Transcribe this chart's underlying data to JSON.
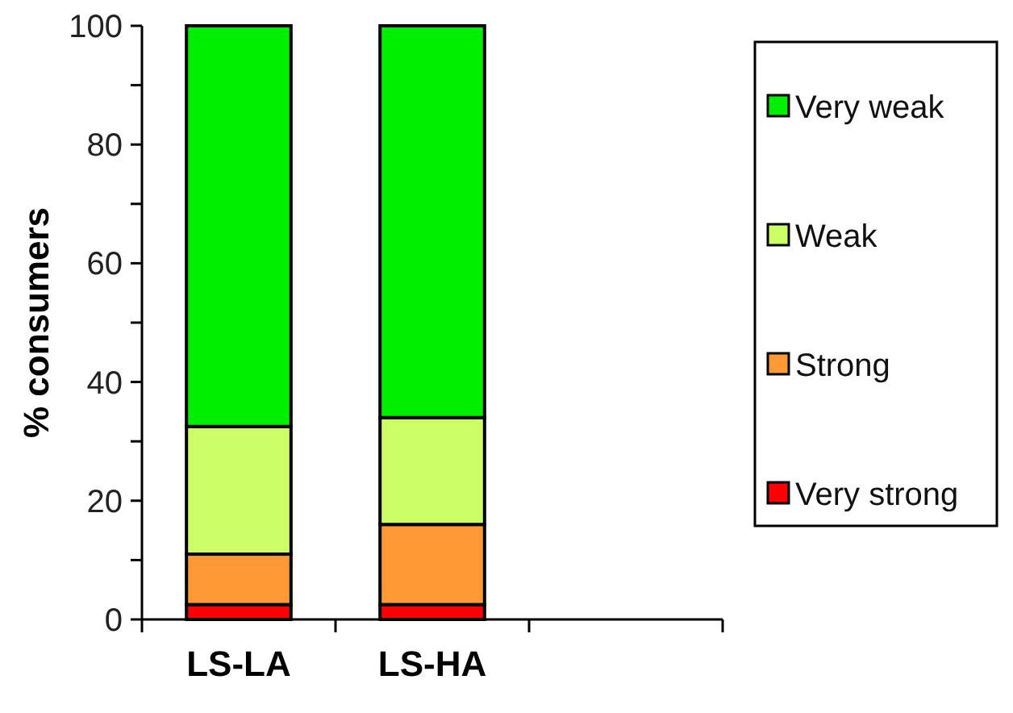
{
  "chart_data": {
    "type": "bar",
    "stacked": true,
    "ylabel": "% consumers",
    "categories": [
      "LS-LA",
      "LS-HA",
      null
    ],
    "series": [
      {
        "name": "Very strong",
        "color": "#ff0000",
        "values": [
          2.5,
          2.5,
          null
        ]
      },
      {
        "name": "Strong",
        "color": "#ff9933",
        "values": [
          8.5,
          13.5,
          null
        ]
      },
      {
        "name": "Weak",
        "color": "#ccff66",
        "values": [
          21.5,
          18,
          null
        ]
      },
      {
        "name": "Very weak",
        "color": "#00ee00",
        "values": [
          67.5,
          66,
          null
        ]
      }
    ],
    "ylim": [
      0,
      100
    ],
    "yticks": [
      0,
      {
        "value": 10,
        "label": null
      },
      20,
      {
        "value": 30,
        "label": null
      },
      40,
      {
        "value": 50,
        "label": null
      },
      60,
      {
        "value": 70,
        "label": null
      },
      80,
      {
        "value": 90,
        "label": null
      },
      100
    ],
    "grid": false,
    "legend": "right"
  }
}
